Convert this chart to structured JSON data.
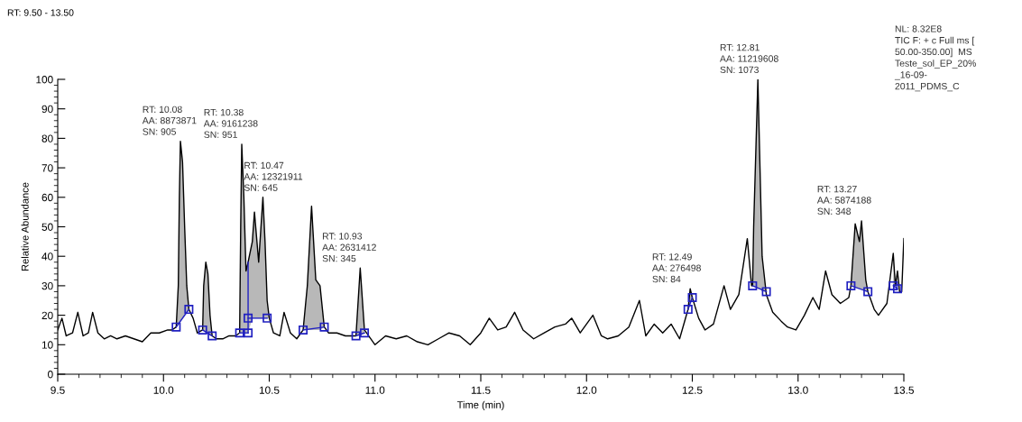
{
  "chart_data": {
    "type": "line",
    "title": "RT: 9.50 - 13.50",
    "xlabel": "Time (min)",
    "ylabel": "Relative Abundance",
    "xlim": [
      9.5,
      13.5
    ],
    "ylim": [
      0,
      100
    ],
    "xticks": [
      9.5,
      {
        "value": 10,
        "label": "10.0"
      },
      10.5,
      {
        "value": 11,
        "label": "11.0"
      },
      11.5,
      {
        "value": 12,
        "label": "12.0"
      },
      12.5,
      {
        "value": 13,
        "label": "13.0"
      },
      13.5
    ],
    "yticks": [
      0,
      10,
      20,
      30,
      40,
      50,
      60,
      70,
      80,
      90,
      100
    ],
    "grid": false,
    "legend": false,
    "series": [
      {
        "color": "#000000",
        "upper": [
          null,
          null,
          null,
          null,
          null,
          null,
          null,
          null,
          null,
          null,
          null,
          null,
          null,
          null,
          null,
          null,
          null,
          null,
          null,
          16,
          30,
          60,
          79,
          72,
          50,
          30,
          22,
          null,
          null,
          15,
          30,
          38,
          34,
          20,
          13,
          null,
          null,
          null,
          null,
          14,
          50,
          78,
          60,
          35,
          38,
          45,
          55,
          38,
          60,
          45,
          25,
          19,
          null,
          null,
          null,
          null,
          null,
          15,
          30,
          57,
          32,
          30,
          16,
          null,
          null,
          null,
          13,
          36,
          15,
          null,
          null,
          null,
          null,
          null,
          null,
          null,
          null,
          null,
          null,
          null,
          null,
          null,
          null,
          null,
          null,
          null,
          null,
          null,
          null,
          null,
          null,
          null,
          null,
          null,
          null,
          null,
          null,
          null,
          null,
          null,
          null,
          null,
          22,
          29,
          26,
          null,
          null,
          null,
          null,
          null,
          null,
          null,
          null,
          30,
          50,
          100,
          70,
          40,
          27,
          null,
          null,
          null,
          null,
          null,
          null,
          null,
          null,
          null,
          null,
          null,
          30,
          51,
          45,
          52,
          32,
          28,
          null,
          null,
          null,
          41,
          30,
          35,
          null,
          null,
          null
        ],
        "lower": [
          null,
          null,
          null,
          null,
          null,
          null,
          null,
          null,
          null,
          null,
          null,
          null,
          null,
          null,
          null,
          null,
          null,
          null,
          null,
          16,
          17,
          17.5,
          18,
          19,
          20,
          21,
          22,
          null,
          null,
          15,
          15,
          14,
          14,
          13,
          13,
          null,
          null,
          null,
          null,
          14,
          14,
          14,
          14,
          14,
          14,
          19,
          19,
          19,
          19,
          19,
          19,
          19,
          null,
          null,
          null,
          null,
          null,
          15,
          15,
          15,
          15,
          15,
          16,
          null,
          null,
          null,
          13,
          13,
          14,
          null,
          null,
          null,
          null,
          null,
          null,
          null,
          null,
          null,
          null,
          null,
          null,
          null,
          null,
          null,
          null,
          null,
          null,
          null,
          null,
          null,
          null,
          null,
          null,
          null,
          null,
          null,
          null,
          null,
          null,
          null,
          null,
          null,
          22,
          24,
          26,
          null,
          null,
          null,
          null,
          null,
          null,
          null,
          null,
          30,
          30,
          29,
          29,
          28,
          28,
          null,
          null,
          null,
          null,
          null,
          null,
          null,
          null,
          null,
          null,
          null,
          30,
          29.5,
          29,
          29,
          28,
          28,
          null,
          null,
          null,
          30,
          30,
          30,
          null,
          null,
          null
        ],
        "x": [
          9.5,
          9.52,
          9.54,
          9.57,
          9.595,
          9.62,
          9.645,
          9.665,
          9.69,
          9.72,
          9.75,
          9.78,
          9.82,
          9.86,
          9.9,
          9.94,
          9.98,
          10.02,
          10.04,
          10.06,
          10.07,
          10.075,
          10.08,
          10.09,
          10.1,
          10.11,
          10.12,
          10.14,
          10.16,
          10.185,
          10.19,
          10.2,
          10.21,
          10.22,
          10.23,
          10.25,
          10.28,
          10.31,
          10.34,
          10.36,
          10.365,
          10.37,
          10.38,
          10.39,
          10.4,
          10.42,
          10.43,
          10.45,
          10.47,
          10.48,
          10.49,
          10.5,
          10.52,
          10.55,
          10.57,
          10.6,
          10.63,
          10.66,
          10.68,
          10.7,
          10.72,
          10.74,
          10.76,
          10.78,
          10.82,
          10.86,
          10.91,
          10.93,
          10.95,
          11.0,
          11.05,
          11.1,
          11.15,
          11.2,
          11.25,
          11.3,
          11.35,
          11.4,
          11.45,
          11.5,
          11.54,
          11.58,
          11.62,
          11.66,
          11.7,
          11.75,
          11.8,
          11.85,
          11.9,
          11.93,
          11.97,
          12.03,
          12.07,
          12.1,
          12.15,
          12.2,
          12.25,
          12.28,
          12.32,
          12.36,
          12.4,
          12.44,
          12.48,
          12.49,
          12.5,
          12.53,
          12.56,
          12.6,
          12.65,
          12.68,
          12.72,
          12.76,
          12.78,
          12.785,
          12.79,
          12.81,
          12.82,
          12.83,
          12.85,
          12.88,
          12.92,
          12.95,
          12.99,
          13.03,
          13.07,
          13.1,
          13.13,
          13.16,
          13.2,
          13.24,
          13.25,
          13.27,
          13.29,
          13.3,
          13.32,
          13.33,
          13.36,
          13.38,
          13.42,
          13.45,
          13.46,
          13.47,
          13.48,
          13.49,
          13.5
        ],
        "values": [
          15,
          19,
          13,
          14,
          21,
          13,
          14,
          21,
          14,
          12,
          13,
          12,
          13,
          12,
          11,
          14,
          14,
          15,
          15,
          16,
          30,
          60,
          79,
          72,
          50,
          30,
          22,
          19,
          14,
          15,
          30,
          38,
          34,
          20,
          13,
          12,
          12,
          13,
          13,
          14,
          50,
          78,
          60,
          35,
          38,
          45,
          55,
          38,
          60,
          45,
          25,
          19,
          14,
          13,
          21,
          14,
          12,
          15,
          30,
          57,
          32,
          30,
          16,
          14,
          14,
          13,
          13,
          36,
          15,
          10,
          13,
          12,
          13,
          11,
          10,
          12,
          14,
          13,
          10,
          14,
          19,
          15,
          16,
          21,
          15,
          12,
          14,
          16,
          17,
          19,
          14,
          20,
          13,
          12,
          13,
          16,
          25,
          13,
          17,
          14,
          17,
          12,
          22,
          29,
          26,
          19,
          15,
          17,
          30,
          22,
          27,
          46,
          30,
          30,
          50,
          100,
          70,
          40,
          27,
          21,
          18,
          16,
          15,
          20,
          26,
          22,
          35,
          27,
          24,
          26,
          30,
          51,
          45,
          52,
          32,
          28,
          22,
          20,
          24,
          41,
          30,
          35,
          28,
          28,
          46
        ]
      },
      {
        "type": "line",
        "color": "#2020c0",
        "x": [
          10.4,
          10.4
        ],
        "values": [
          14,
          38
        ]
      },
      {
        "type": "line",
        "color": "#2020c0",
        "marker": "square",
        "x": [
          10.06,
          10.12
        ],
        "values": [
          16,
          22
        ]
      },
      {
        "type": "line",
        "color": "#2020c0",
        "marker": "square",
        "x": [
          10.185,
          10.23
        ],
        "values": [
          15,
          13
        ]
      },
      {
        "type": "line",
        "color": "#2020c0",
        "marker": "square",
        "x": [
          10.36,
          10.4
        ],
        "values": [
          14,
          14
        ]
      },
      {
        "type": "line",
        "color": "#2020c0",
        "marker": "square",
        "x": [
          10.4,
          10.49
        ],
        "values": [
          19,
          19
        ]
      },
      {
        "type": "line",
        "color": "#2020c0",
        "marker": "square",
        "x": [
          10.66,
          10.76
        ],
        "values": [
          15,
          16
        ]
      },
      {
        "type": "line",
        "color": "#2020c0",
        "marker": "square",
        "x": [
          10.91,
          10.95
        ],
        "values": [
          13,
          14
        ]
      },
      {
        "type": "line",
        "color": "#2020c0",
        "marker": "square",
        "x": [
          12.48,
          12.5
        ],
        "values": [
          22,
          26
        ]
      },
      {
        "type": "line",
        "color": "#2020c0",
        "marker": "square",
        "x": [
          12.785,
          12.85
        ],
        "values": [
          30,
          28
        ]
      },
      {
        "type": "line",
        "color": "#2020c0",
        "marker": "square",
        "x": [
          13.25,
          13.33
        ],
        "values": [
          30,
          28
        ]
      },
      {
        "type": "line",
        "color": "#2020c0",
        "marker": "square",
        "x": [
          13.45,
          13.47
        ],
        "values": [
          30,
          29
        ]
      }
    ],
    "annotations": [
      {
        "text": "RT: 10.08\nAA: 8873871\nSN: 905",
        "x": 10.08,
        "y": 79
      },
      {
        "text": "RT: 10.38\nAA: 9161238\nSN: 951",
        "x": 10.37,
        "y": 78
      },
      {
        "text": "RT: 10.47\nAA: 12321911\nSN: 645",
        "x": 10.47,
        "y": 60
      },
      {
        "text": "RT: 10.93\nAA: 2631412\nSN: 345",
        "x": 10.93,
        "y": 36
      },
      {
        "text": "RT: 12.49\nAA: 276498\nSN: 84",
        "x": 12.49,
        "y": 29
      },
      {
        "text": "RT: 12.81\nAA: 11219608\nSN: 1073",
        "x": 12.81,
        "y": 100
      },
      {
        "text": "RT: 13.27\nAA: 5874188\nSN: 348",
        "x": 13.27,
        "y": 52
      },
      "NL: 8.32E8\nTIC F: + c Full ms [\n50.00-350.00]  MS\nTeste_sol_EP_20%\n_16-09-\n2011_PDMS_C"
    ]
  }
}
